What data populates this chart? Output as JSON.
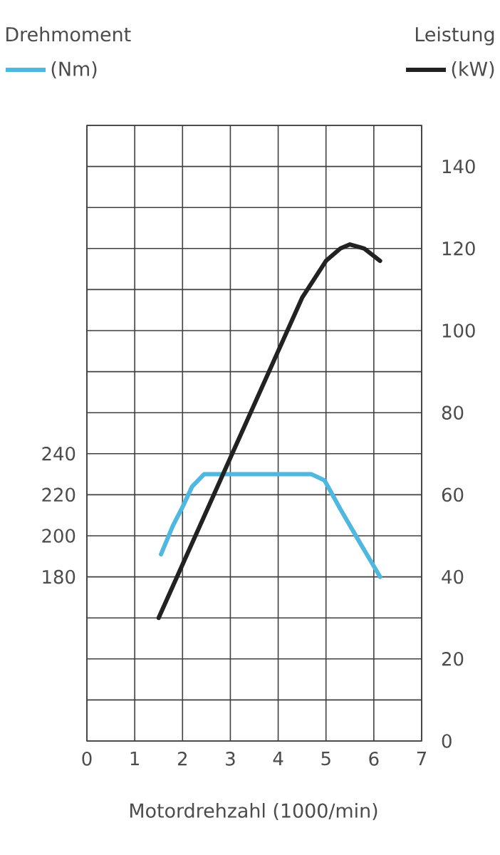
{
  "chart_data": {
    "type": "line",
    "ylabel": "Drehmoment",
    "y2label": "Leistung",
    "xlabel": "Motordrehzahl (1000/min)",
    "xlim": [
      0,
      7
    ],
    "xticks": [
      0,
      1,
      2,
      3,
      4,
      5,
      6,
      7
    ],
    "ylim": [
      100,
      400
    ],
    "yticks": [
      {
        "value": 100,
        "label": null
      },
      {
        "value": 120,
        "label": null
      },
      {
        "value": 140,
        "label": null
      },
      {
        "value": 160,
        "label": null
      },
      180,
      200,
      220,
      240,
      {
        "value": 260,
        "label": null
      },
      {
        "value": 280,
        "label": null
      },
      {
        "value": 300,
        "label": null
      },
      {
        "value": 320,
        "label": null
      },
      {
        "value": 340,
        "label": null
      },
      {
        "value": 360,
        "label": null
      },
      {
        "value": 380,
        "label": null
      },
      {
        "value": 400,
        "label": null
      }
    ],
    "y2lim": [
      0,
      150
    ],
    "y2ticks": [
      0,
      20,
      40,
      60,
      80,
      100,
      120,
      140
    ],
    "grid": true,
    "legend": "top",
    "line_style": "solid",
    "series": [
      {
        "name": "(Nm)",
        "color": "#4fb8e0",
        "x": [
          1.55,
          1.8,
          2.0,
          2.2,
          2.45,
          3,
          4,
          4.7,
          4.97,
          5.3,
          5.7,
          6.13
        ],
        "values": [
          191,
          205,
          214,
          224,
          230,
          230,
          230,
          230,
          227,
          213,
          197,
          180
        ]
      },
      {
        "name": "(kW)",
        "color": "#222222",
        "axis": "y2",
        "x": [
          1.5,
          2,
          2.5,
          3,
          3.5,
          4,
          4.5,
          5,
          5.3,
          5.5,
          5.8,
          6.13
        ],
        "values": [
          30,
          43,
          56,
          69,
          82,
          95,
          108,
          117,
          120,
          121,
          120,
          117
        ]
      }
    ]
  }
}
